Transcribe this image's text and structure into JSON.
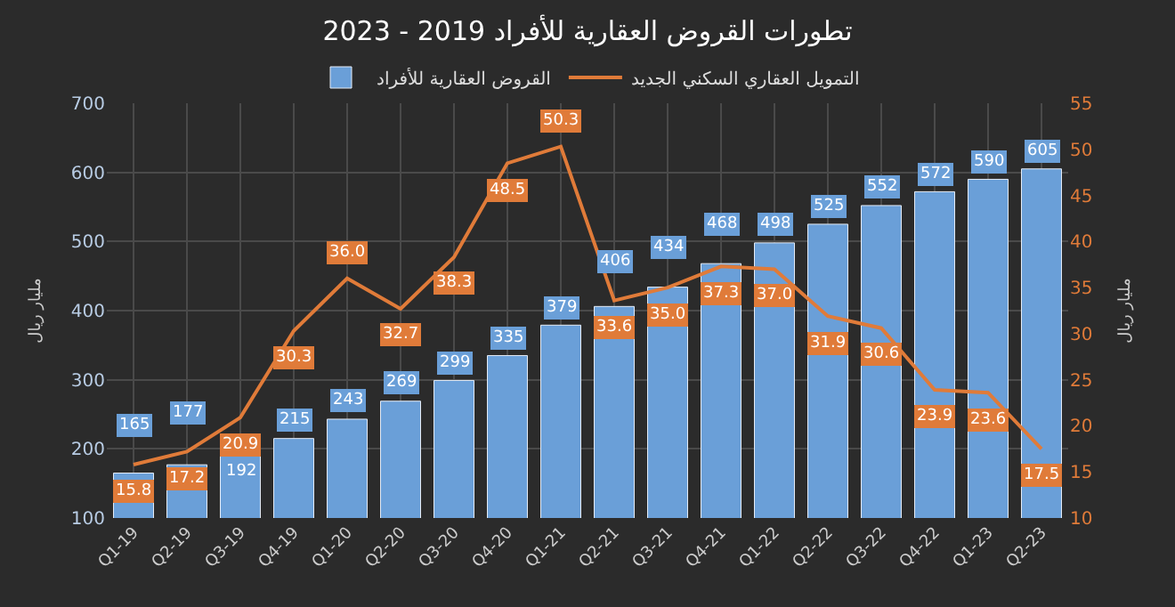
{
  "chart_data": {
    "type": "bar",
    "title": "تطورات القروض العقارية للأفراد 2019 - 2023",
    "categories": [
      "Q1-19",
      "Q2-19",
      "Q3-19",
      "Q4-19",
      "Q1-20",
      "Q2-20",
      "Q3-20",
      "Q4-20",
      "Q1-21",
      "Q2-21",
      "Q3-21",
      "Q4-21",
      "Q1-22",
      "Q2-22",
      "Q3-22",
      "Q4-22",
      "Q1-23",
      "Q2-23"
    ],
    "series": [
      {
        "name": "القروض العقارية للأفراد",
        "color": "#6a9fd8",
        "values": [
          165,
          177,
          192,
          215,
          243,
          269,
          299,
          335,
          379,
          406,
          434,
          468,
          498,
          525,
          552,
          572,
          590,
          605
        ]
      },
      {
        "name": "التمويل العقاري السكني الجديد",
        "type": "line",
        "axis": "y2",
        "color": "#e07b39",
        "values": [
          15.8,
          17.2,
          20.9,
          30.3,
          36.0,
          32.7,
          38.3,
          48.5,
          50.3,
          33.6,
          35.0,
          37.3,
          37.0,
          31.9,
          30.6,
          23.9,
          23.6,
          17.5
        ],
        "value_labels": [
          "15.8",
          "17.2",
          "20.9",
          "30.3",
          "36.0",
          "32.7",
          "38.3",
          "48.5",
          "50.3",
          "33.6",
          "35.0",
          "37.3",
          "37.0",
          "31.9",
          "30.6",
          "23.9",
          "23.6",
          "17.5"
        ]
      }
    ],
    "ylabel": "مليار ريال",
    "y2label": "مليار ريال",
    "ylim": [
      100,
      700
    ],
    "yticks": [
      100,
      200,
      300,
      400,
      500,
      600,
      700
    ],
    "y2lim": [
      10,
      55
    ],
    "y2ticks": [
      10,
      15,
      20,
      25,
      30,
      35,
      40,
      45,
      50,
      55
    ],
    "grid": true,
    "legend": "top",
    "data_labels": true,
    "marker": "none",
    "line_style": "solid"
  }
}
